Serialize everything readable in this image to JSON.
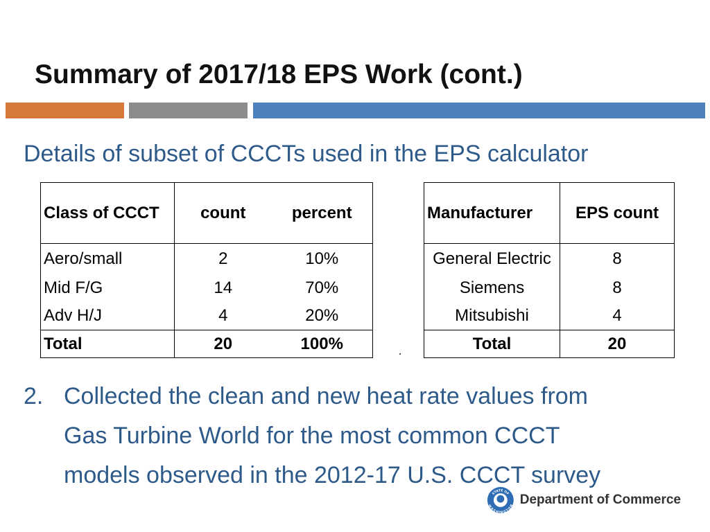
{
  "slide": {
    "title": "Summary of 2017/18 EPS Work (cont.)",
    "subtitle": "Details of subset of CCCTs used in the EPS calculator",
    "accent_colors": {
      "orange": "#D6793A",
      "gray": "#8C8C8C",
      "blue": "#4F81BD",
      "text_blue": "#2E5A8A"
    }
  },
  "class_table": {
    "headers": [
      "Class of CCCT",
      "count",
      "percent"
    ],
    "rows": [
      [
        "Aero/small",
        "2",
        "10%"
      ],
      [
        "Mid F/G",
        "14",
        "70%"
      ],
      [
        "Adv H/J",
        "4",
        "20%"
      ]
    ],
    "total": [
      "Total",
      "20",
      "100%"
    ]
  },
  "manufacturer_table": {
    "headers": [
      "Manufacturer",
      "EPS count"
    ],
    "rows": [
      [
        "General Electric",
        "8"
      ],
      [
        "Siemens",
        "8"
      ],
      [
        "Mitsubishi",
        "4"
      ]
    ],
    "total": [
      "Total",
      "20"
    ]
  },
  "list_item": {
    "number": "2.",
    "lines": [
      "Collected the clean and new heat rate values from",
      "Gas Turbine World for the most common CCCT",
      "models observed in the 2012-17 U.S. CCCT survey"
    ]
  },
  "footer": {
    "seal_top_text": "STATE OF",
    "seal_bottom_text": "WASHINGTON",
    "org_name": "Department of Commerce"
  }
}
